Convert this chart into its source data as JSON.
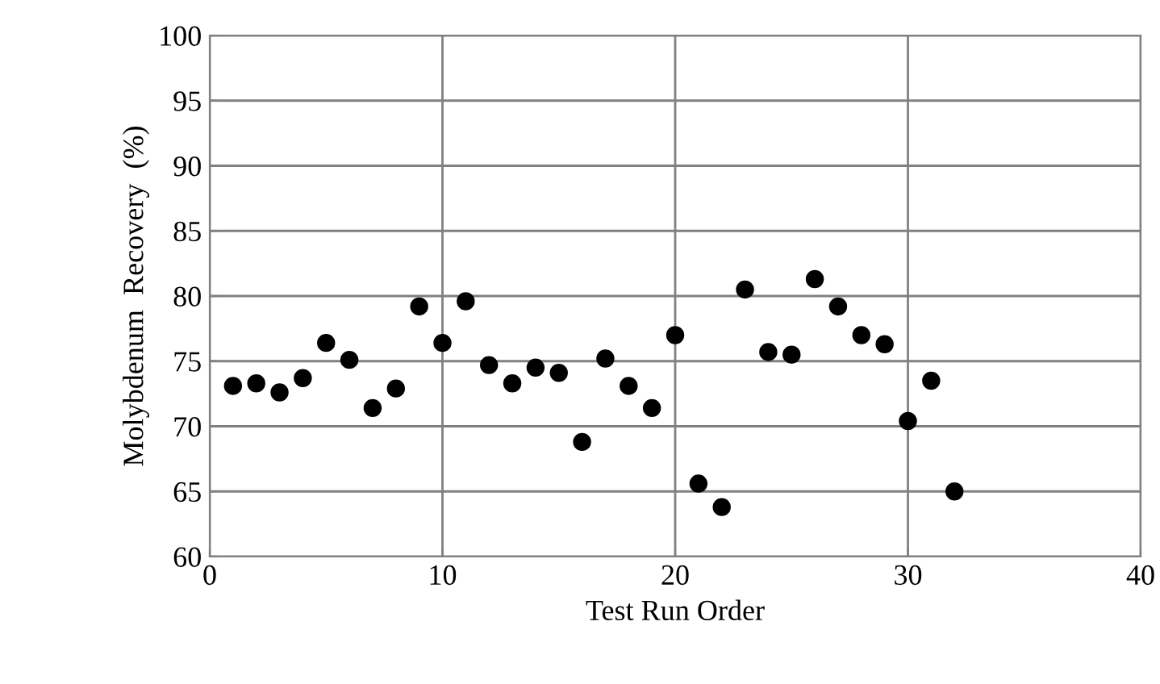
{
  "chart_data": {
    "type": "scatter",
    "xlabel": "Test Run Order",
    "ylabel": "Molybdenum  Recovery  (%)",
    "x": [
      1,
      2,
      3,
      4,
      5,
      6,
      7,
      8,
      9,
      10,
      11,
      12,
      13,
      14,
      15,
      16,
      17,
      18,
      19,
      20,
      21,
      22,
      23,
      24,
      25,
      26,
      27,
      28,
      29,
      30,
      31,
      32
    ],
    "series": [
      {
        "color": "#000000",
        "values": [
          73.1,
          73.3,
          72.6,
          73.7,
          76.4,
          75.1,
          71.4,
          72.9,
          79.2,
          76.4,
          79.6,
          74.7,
          73.3,
          74.5,
          74.1,
          68.8,
          75.2,
          73.1,
          71.4,
          77.0,
          65.6,
          63.8,
          80.5,
          75.7,
          75.5,
          81.3,
          79.2,
          77.0,
          76.3,
          70.4,
          73.5,
          65.0
        ]
      }
    ],
    "xlim": [
      0,
      40
    ],
    "xticks": [
      0,
      10,
      20,
      30,
      40
    ],
    "ylim": [
      60,
      100
    ],
    "yticks": [
      60,
      65,
      70,
      75,
      80,
      85,
      90,
      95,
      100
    ],
    "grid": true,
    "marker": "circle",
    "legend": false
  }
}
